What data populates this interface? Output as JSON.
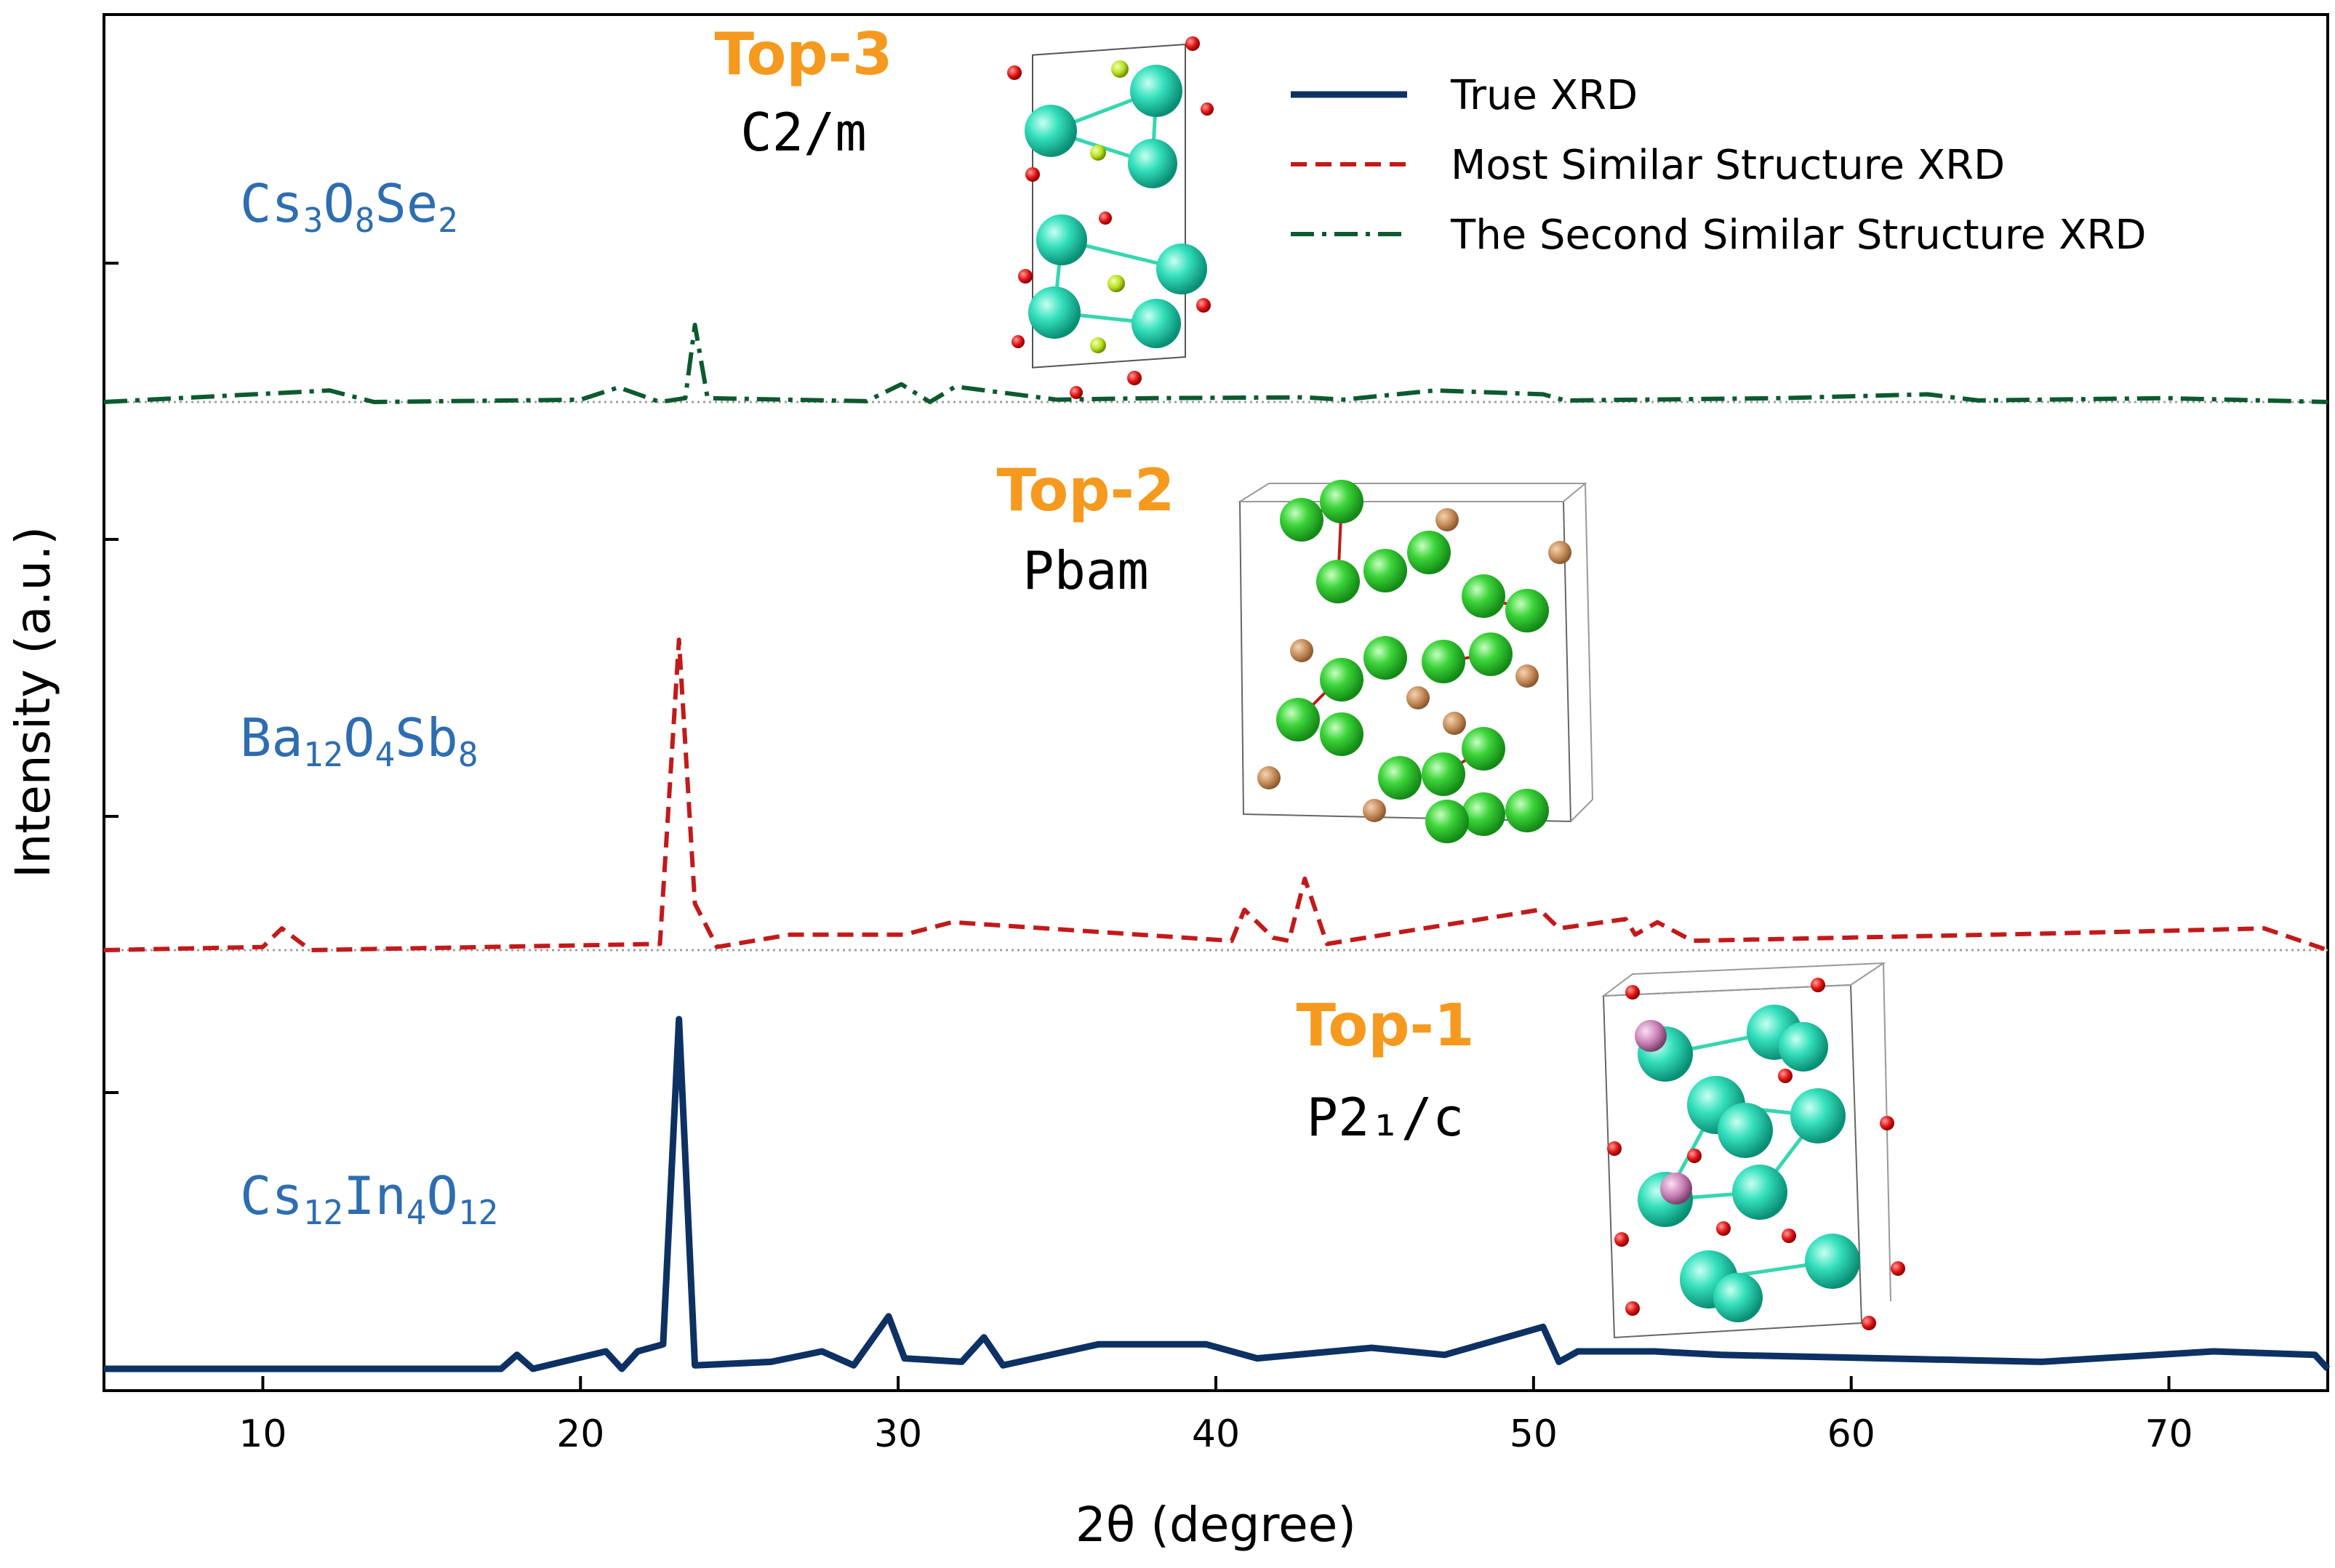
{
  "chart_data": {
    "type": "line",
    "title": "",
    "xlabel": "2θ (degree)",
    "ylabel": "Intensity (a.u.)",
    "xlim": [
      5,
      75
    ],
    "x_ticks": [
      10,
      20,
      30,
      40,
      50,
      60,
      70
    ],
    "x_tick_labels": [
      "10",
      "20",
      "30",
      "40",
      "50",
      "60",
      "70"
    ],
    "legend": {
      "placement": "top-right",
      "entries": [
        {
          "label": "True XRD",
          "style": "solid",
          "color": "#0d3163"
        },
        {
          "label": "Most Similar Structure XRD",
          "style": "dashed",
          "color": "#c21a1a"
        },
        {
          "label": "The Second Similar Structure XRD",
          "style": "dashdot",
          "color": "#0c5a2e"
        }
      ]
    },
    "panels": [
      {
        "rank_label": "Top-3",
        "space_group": "C2/m",
        "formula": [
          {
            "t": "Cs",
            "s": false
          },
          {
            "t": "3",
            "s": true
          },
          {
            "t": "O",
            "s": false
          },
          {
            "t": "8",
            "s": true
          },
          {
            "t": "Se",
            "s": false
          },
          {
            "t": "2",
            "s": true
          }
        ],
        "series_name": "The Second Similar Structure XRD",
        "style": "dashdot",
        "color": "#0c5a2e",
        "x": [
          5,
          12.1,
          13.5,
          20,
          21.2,
          22.5,
          23.3,
          23.6,
          24.0,
          29,
          30.1,
          31,
          31.8,
          35,
          38,
          42.8,
          44,
          46.9,
          50.3,
          51,
          57.8,
          62.4,
          64,
          69.9,
          75
        ],
        "y": [
          0,
          0.15,
          0,
          0.03,
          0.19,
          0,
          0.05,
          1.0,
          0.05,
          0.01,
          0.23,
          0,
          0.2,
          0.03,
          0.05,
          0.06,
          0.03,
          0.15,
          0.1,
          0.02,
          0.05,
          0.1,
          0.02,
          0.05,
          0
        ]
      },
      {
        "rank_label": "Top-2",
        "space_group": "Pbam",
        "formula": [
          {
            "t": "Ba",
            "s": false
          },
          {
            "t": "12",
            "s": true
          },
          {
            "t": "O",
            "s": false
          },
          {
            "t": "4",
            "s": true
          },
          {
            "t": "Sb",
            "s": false
          },
          {
            "t": "8",
            "s": true
          }
        ],
        "series_name": "Most Similar Structure XRD",
        "style": "dashed",
        "color": "#c21a1a",
        "x": [
          5,
          10,
          10.6,
          11.5,
          22.5,
          23.1,
          23.6,
          24.3,
          26.6,
          30.2,
          31.7,
          40.5,
          40.9,
          41.8,
          42.3,
          42.8,
          43.5,
          50.2,
          50.8,
          52.9,
          53.2,
          53.9,
          55,
          64.5,
          69,
          73.0,
          75
        ],
        "y": [
          0,
          0.01,
          0.07,
          0,
          0.02,
          1.0,
          0.15,
          0.01,
          0.05,
          0.05,
          0.09,
          0.03,
          0.13,
          0.04,
          0.03,
          0.23,
          0.02,
          0.13,
          0.07,
          0.1,
          0.05,
          0.09,
          0.03,
          0.05,
          0.06,
          0.07,
          0
        ]
      },
      {
        "rank_label": "Top-1",
        "space_group": "P2₁/c",
        "formula": [
          {
            "t": "Cs",
            "s": false
          },
          {
            "t": "12",
            "s": true
          },
          {
            "t": "In",
            "s": false
          },
          {
            "t": "4",
            "s": true
          },
          {
            "t": "O",
            "s": false
          },
          {
            "t": "12",
            "s": true
          }
        ],
        "series_name": "True XRD",
        "style": "solid",
        "color": "#0d3163",
        "x": [
          5,
          17.5,
          18.0,
          18.5,
          20.8,
          21.3,
          21.8,
          22.6,
          23.1,
          23.6,
          26,
          27.6,
          28.6,
          29.7,
          30.2,
          32.0,
          32.7,
          33.3,
          36.3,
          39.7,
          41.3,
          44.9,
          47.2,
          50.3,
          50.8,
          51.4,
          53.8,
          55.9,
          61,
          66,
          71.4,
          74.6,
          75
        ],
        "y": [
          0,
          0,
          0.04,
          0,
          0.05,
          0,
          0.05,
          0.07,
          1.0,
          0.01,
          0.02,
          0.05,
          0.01,
          0.15,
          0.03,
          0.02,
          0.09,
          0.01,
          0.07,
          0.07,
          0.03,
          0.06,
          0.04,
          0.12,
          0.02,
          0.05,
          0.05,
          0.04,
          0.03,
          0.02,
          0.05,
          0.04,
          0
        ]
      }
    ]
  },
  "colors": {
    "formula": "#2e6db0",
    "rank": "#f59a1f",
    "baseline": "#a0a0a0"
  }
}
